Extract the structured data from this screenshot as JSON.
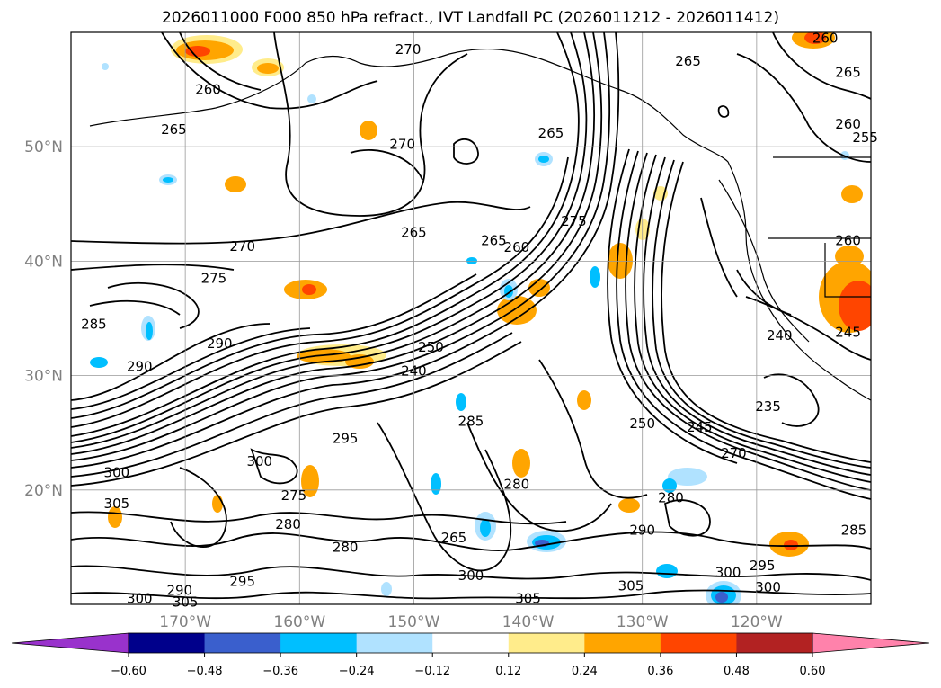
{
  "title": "2026011000 F000 850 hPa refract., IVT Landfall PC (2026011212 - 2026011412)",
  "map": {
    "lat_labels": [
      {
        "text": "50°N",
        "lat": 50
      },
      {
        "text": "40°N",
        "lat": 40
      },
      {
        "text": "30°N",
        "lat": 30
      },
      {
        "text": "20°N",
        "lat": 20
      }
    ],
    "lon_labels": [
      {
        "text": "170°W",
        "lon": -170
      },
      {
        "text": "160°W",
        "lon": -160
      },
      {
        "text": "150°W",
        "lon": -150
      },
      {
        "text": "140°W",
        "lon": -140
      },
      {
        "text": "130°W",
        "lon": -130
      },
      {
        "text": "120°W",
        "lon": -120
      }
    ],
    "contour_labels": [
      {
        "text": "270",
        "lon": -151,
        "lat": 50.2
      },
      {
        "text": "265",
        "lon": -150,
        "lat": 42.5
      },
      {
        "text": "270",
        "lon": -165,
        "lat": 41.3
      },
      {
        "text": "265",
        "lon": -143,
        "lat": 41.8
      },
      {
        "text": "260",
        "lon": -141,
        "lat": 41.2
      },
      {
        "text": "275",
        "lon": -136,
        "lat": 43.5
      },
      {
        "text": "265",
        "lon": -138,
        "lat": 51.2
      },
      {
        "text": "270",
        "lon": -150.5,
        "lat": 58.5
      },
      {
        "text": "265",
        "lon": -126,
        "lat": 57.5
      },
      {
        "text": "265",
        "lon": -112,
        "lat": 56.5
      },
      {
        "text": "260",
        "lon": -114,
        "lat": 59.5
      },
      {
        "text": "260",
        "lon": -112,
        "lat": 52
      },
      {
        "text": "255",
        "lon": -110.5,
        "lat": 50.8
      },
      {
        "text": "260",
        "lon": -112,
        "lat": 41.8
      },
      {
        "text": "265",
        "lon": -171,
        "lat": 51.5
      },
      {
        "text": "260",
        "lon": -168,
        "lat": 55
      },
      {
        "text": "290",
        "lon": -174,
        "lat": 30.8
      },
      {
        "text": "285",
        "lon": -178,
        "lat": 34.5
      },
      {
        "text": "275",
        "lon": -167.5,
        "lat": 38.5
      },
      {
        "text": "290",
        "lon": -167,
        "lat": 32.8
      },
      {
        "text": "240",
        "lon": -150,
        "lat": 30.4
      },
      {
        "text": "250",
        "lon": -148.5,
        "lat": 32.5
      },
      {
        "text": "300",
        "lon": -176,
        "lat": 21.5
      },
      {
        "text": "300",
        "lon": -163.5,
        "lat": 22.5
      },
      {
        "text": "305",
        "lon": -176,
        "lat": 18.8
      },
      {
        "text": "280",
        "lon": -161,
        "lat": 17
      },
      {
        "text": "275",
        "lon": -160.5,
        "lat": 19.5
      },
      {
        "text": "280",
        "lon": -156,
        "lat": 15
      },
      {
        "text": "295",
        "lon": -156,
        "lat": 24.5
      },
      {
        "text": "285",
        "lon": -145,
        "lat": 26
      },
      {
        "text": "280",
        "lon": -141,
        "lat": 20.5
      },
      {
        "text": "265",
        "lon": -146.5,
        "lat": 15.8
      },
      {
        "text": "300",
        "lon": -145,
        "lat": 12.5
      },
      {
        "text": "305",
        "lon": -140,
        "lat": 10.5
      },
      {
        "text": "305",
        "lon": -131,
        "lat": 11.6
      },
      {
        "text": "280",
        "lon": -127.5,
        "lat": 19.3
      },
      {
        "text": "290",
        "lon": -130,
        "lat": 16.5
      },
      {
        "text": "300",
        "lon": -122.5,
        "lat": 12.8
      },
      {
        "text": "295",
        "lon": -119.5,
        "lat": 13.4
      },
      {
        "text": "300",
        "lon": -119,
        "lat": 11.5
      },
      {
        "text": "250",
        "lon": -130,
        "lat": 25.8
      },
      {
        "text": "245",
        "lon": -125,
        "lat": 25.5
      },
      {
        "text": "270",
        "lon": -122,
        "lat": 23.2
      },
      {
        "text": "235",
        "lon": -119,
        "lat": 27.3
      },
      {
        "text": "240",
        "lon": -118,
        "lat": 33.5
      },
      {
        "text": "245",
        "lon": -112,
        "lat": 33.8
      },
      {
        "text": "285",
        "lon": -111.5,
        "lat": 16.5
      },
      {
        "text": "295",
        "lon": -165,
        "lat": 12
      },
      {
        "text": "300",
        "lon": -174,
        "lat": 10.5
      },
      {
        "text": "305",
        "lon": -170,
        "lat": 10.2
      },
      {
        "text": "290",
        "lon": -170.5,
        "lat": 11.2
      }
    ]
  },
  "colorbar": {
    "colors": [
      "#9932cc",
      "#00008b",
      "#3a5fcd",
      "#00bfff",
      "#b0e2ff",
      "#ffffff",
      "#ffec8b",
      "#ffa500",
      "#ff4500",
      "#b22222",
      "#ff82ab"
    ],
    "ticks": [
      "−0.60",
      "−0.48",
      "−0.36",
      "−0.24",
      "−0.12",
      "0.12",
      "0.24",
      "0.36",
      "0.48",
      "0.60"
    ]
  },
  "chart_data": {
    "type": "map",
    "title": "2026011000 F000 850 hPa refract., IVT Landfall PC (2026011212 - 2026011412)",
    "lon_range": [
      -180,
      -110
    ],
    "lat_range": [
      10,
      60
    ],
    "grid": true,
    "contour_levels_shown": [
      235,
      240,
      245,
      250,
      255,
      260,
      265,
      270,
      275,
      280,
      285,
      290,
      295,
      300,
      305
    ],
    "colorbar_bounds": [
      -0.6,
      -0.48,
      -0.36,
      -0.24,
      -0.12,
      0.12,
      0.24,
      0.36,
      0.48,
      0.6
    ]
  }
}
